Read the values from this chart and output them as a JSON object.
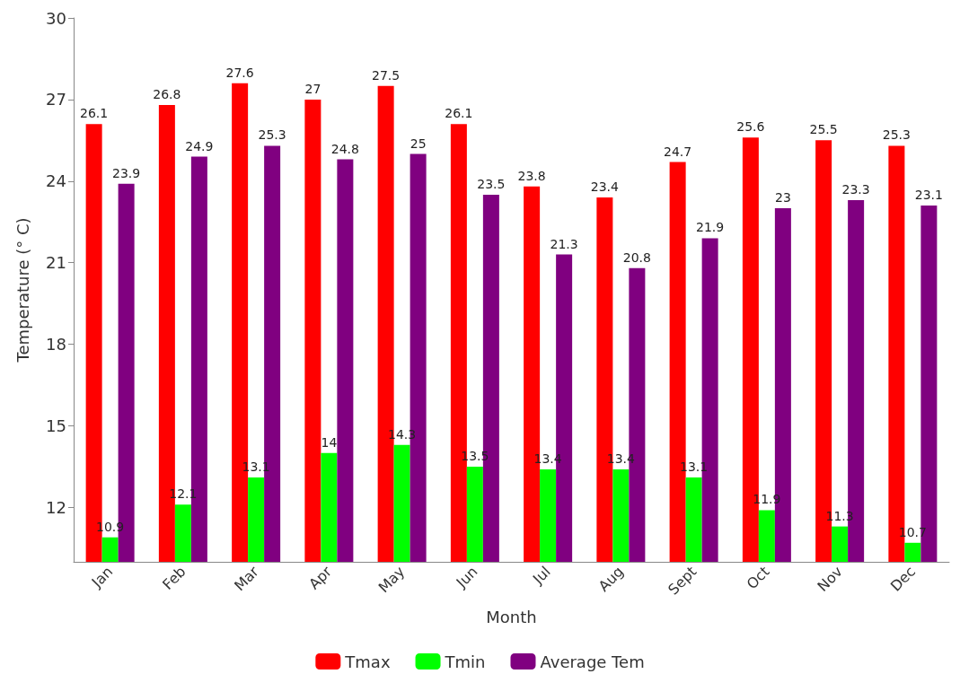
{
  "chart_data": {
    "type": "bar",
    "xlabel": "Month",
    "ylabel": "Temperature (° C)",
    "categories": [
      "Jan",
      "Feb",
      "Mar",
      "Apr",
      "May",
      "Jun",
      "Jul",
      "Aug",
      "Sept",
      "Oct",
      "Nov",
      "Dec"
    ],
    "series": [
      {
        "name": "Tmax",
        "color": "#ff0000",
        "values": [
          26.1,
          26.8,
          27.6,
          27,
          27.5,
          26.1,
          23.8,
          23.4,
          24.7,
          25.6,
          25.5,
          25.3
        ]
      },
      {
        "name": "Tmin",
        "color": "#00ff00",
        "values": [
          10.9,
          12.1,
          13.1,
          14,
          14.3,
          13.5,
          13.4,
          13.4,
          13.1,
          11.9,
          11.3,
          10.7
        ]
      },
      {
        "name": "Average Tem",
        "color": "#800080",
        "values": [
          23.9,
          24.9,
          25.3,
          24.8,
          25,
          23.5,
          21.3,
          20.8,
          21.9,
          23,
          23.3,
          23.1
        ]
      }
    ],
    "ylim": [
      10,
      30
    ],
    "yticks": [
      12,
      15,
      18,
      21,
      24,
      27,
      30
    ],
    "grid": false,
    "legend": "bottom",
    "data_labels": true
  }
}
